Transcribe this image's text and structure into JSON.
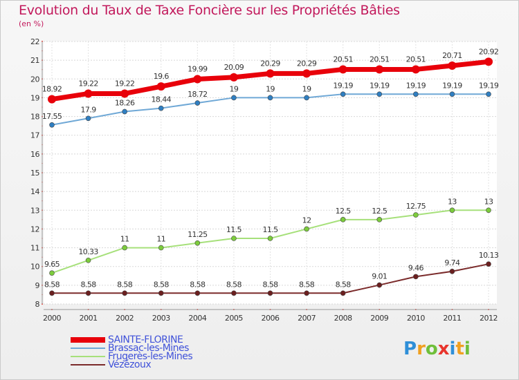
{
  "title": "Evolution du Taux de Taxe Foncière sur les Propriétés Bâties",
  "unit": "(en %)",
  "chart_data": {
    "type": "line",
    "categories": [
      "2000",
      "2001",
      "2002",
      "2003",
      "2004",
      "2005",
      "2006",
      "2007",
      "2008",
      "2009",
      "2010",
      "2011",
      "2012"
    ],
    "ylim": [
      8,
      22
    ],
    "yticks": [
      8,
      9,
      10,
      11,
      12,
      13,
      14,
      15,
      16,
      17,
      18,
      19,
      20,
      21,
      22
    ],
    "grid": true,
    "legend_position": "bottom-left",
    "series": [
      {
        "name": "SAINTE-FLORINE",
        "color": "#e8000a",
        "marker": "#e8000a",
        "values": [
          18.92,
          19.22,
          19.22,
          19.6,
          19.99,
          20.09,
          20.29,
          20.29,
          20.51,
          20.51,
          20.51,
          20.71,
          20.92
        ],
        "labels": [
          "18.92",
          "19.22",
          "19.22",
          "19.6",
          "19.99",
          "20.09",
          "20.29",
          "20.29",
          "20.51",
          "20.51",
          "20.51",
          "20.71",
          "20.92"
        ]
      },
      {
        "name": "Brassac-les-Mines",
        "color": "#6fa8d6",
        "marker": "#2f7fc2",
        "values": [
          17.55,
          17.9,
          18.26,
          18.44,
          18.72,
          19,
          19,
          19,
          19.19,
          19.19,
          19.19,
          19.19,
          19.19
        ],
        "labels": [
          "17.55",
          "17.9",
          "18.26",
          "18.44",
          "18.72",
          "19",
          "19",
          "19",
          "19.19",
          "19.19",
          "19.19",
          "19.19",
          "19.19"
        ]
      },
      {
        "name": "Frugerès-les-Mines",
        "color": "#a6e07a",
        "marker": "#7ccc3c",
        "values": [
          9.65,
          10.33,
          11,
          11,
          11.25,
          11.5,
          11.5,
          12,
          12.5,
          12.5,
          12.75,
          13,
          13
        ],
        "labels": [
          "9.65",
          "10.33",
          "11",
          "11",
          "11.25",
          "11.5",
          "11.5",
          "12",
          "12.5",
          "12.5",
          "12.75",
          "13",
          "13"
        ]
      },
      {
        "name": "Vézézoux",
        "color": "#7a2a2a",
        "marker": "#6b1f1f",
        "values": [
          8.58,
          8.58,
          8.58,
          8.58,
          8.58,
          8.58,
          8.58,
          8.58,
          8.58,
          9.01,
          9.46,
          9.74,
          10.13
        ],
        "labels": [
          "8.58",
          "8.58",
          "8.58",
          "8.58",
          "8.58",
          "8.58",
          "8.58",
          "8.58",
          "8.58",
          "9.01",
          "9.46",
          "9.74",
          "10.13"
        ]
      }
    ]
  },
  "legend": [
    "SAINTE-FLORINE",
    "Brassac-les-Mines",
    "Frugerès-les-Mines",
    "Vézézoux"
  ],
  "logo": {
    "text": "Proxiti",
    "letters": [
      {
        "ch": "P",
        "color": "#2f8fd8"
      },
      {
        "ch": "r",
        "color": "#f0a020"
      },
      {
        "ch": "o",
        "color": "#6fbf3a"
      },
      {
        "ch": "x",
        "color": "#e8342c"
      },
      {
        "ch": "i",
        "color": "#2f8fd8"
      },
      {
        "ch": "t",
        "color": "#f0a020"
      },
      {
        "ch": "i",
        "color": "#6fbf3a"
      }
    ]
  }
}
